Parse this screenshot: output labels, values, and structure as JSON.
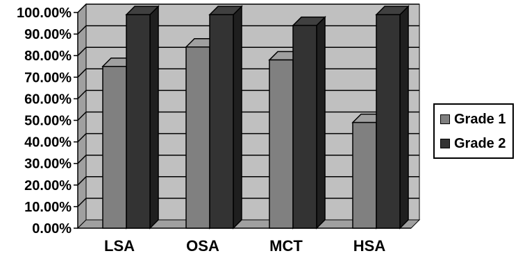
{
  "chart_data": {
    "type": "bar",
    "categories": [
      "LSA",
      "OSA",
      "MCT",
      "HSA"
    ],
    "series": [
      {
        "name": "Grade 1",
        "values": [
          0.75,
          0.84,
          0.78,
          0.49
        ],
        "color": "#808080"
      },
      {
        "name": "Grade 2",
        "values": [
          0.99,
          0.99,
          0.94,
          0.99
        ],
        "color": "#333333"
      }
    ],
    "y_ticks": [
      "0.00%",
      "10.00%",
      "20.00%",
      "30.00%",
      "40.00%",
      "50.00%",
      "60.00%",
      "70.00%",
      "80.00%",
      "90.00%",
      "100.00%"
    ],
    "ylim": [
      0,
      1
    ],
    "grid": true,
    "three_d": true,
    "plot_background": "#c0c0c0",
    "legend_position": "right"
  }
}
